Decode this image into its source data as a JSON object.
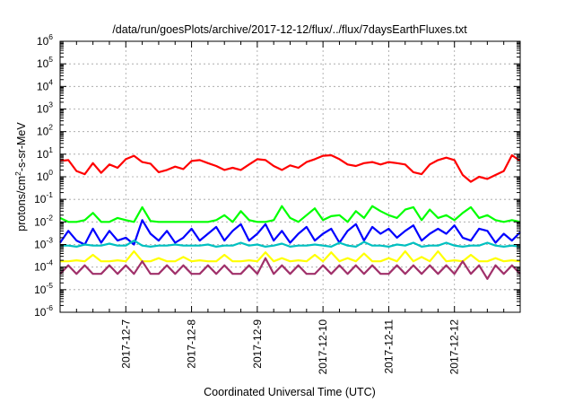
{
  "chart_data": {
    "type": "line",
    "title": "/data/run/goesPlots/archive/2017-12-12/flux/../flux/7daysEarthFluxes.txt",
    "xlabel": "Coordinated Universal Time (UTC)",
    "ylabel": {
      "pre": "protons/cm",
      "sup": "2",
      "post": "-s-sr-MeV"
    },
    "y_scale": "log",
    "ylim_exp": [
      -6,
      6
    ],
    "y_ticks": [
      {
        "base": "10",
        "exp": "-6"
      },
      {
        "base": "10",
        "exp": "-5"
      },
      {
        "base": "10",
        "exp": "-4"
      },
      {
        "base": "10",
        "exp": "-3"
      },
      {
        "base": "10",
        "exp": "-2"
      },
      {
        "base": "10",
        "exp": "-1"
      },
      {
        "base": "10",
        "exp": "0"
      },
      {
        "base": "10",
        "exp": "1"
      },
      {
        "base": "10",
        "exp": "2"
      },
      {
        "base": "10",
        "exp": "3"
      },
      {
        "base": "10",
        "exp": "4"
      },
      {
        "base": "10",
        "exp": "5"
      },
      {
        "base": "10",
        "exp": "6"
      }
    ],
    "x_range": [
      "2017-12-06 00:00",
      "2017-12-13 00:00"
    ],
    "x_ticks": [
      {
        "label": "2017-12-7",
        "x": "2017-12-07 00:00"
      },
      {
        "label": "2017-12-8",
        "x": "2017-12-08 00:00"
      },
      {
        "label": "2017-12-9",
        "x": "2017-12-09 00:00"
      },
      {
        "label": "2017-12-10",
        "x": "2017-12-10 00:00"
      },
      {
        "label": "2017-12-11",
        "x": "2017-12-11 00:00"
      },
      {
        "label": "2017-12-12",
        "x": "2017-12-12 00:00"
      }
    ],
    "grid": true,
    "series": [
      {
        "color": "#ff0000",
        "x": [
          "2017-12-06 00:00",
          "2017-12-06 03:00",
          "2017-12-06 06:00",
          "2017-12-06 09:00",
          "2017-12-06 12:00",
          "2017-12-06 15:00",
          "2017-12-06 18:00",
          "2017-12-06 21:00",
          "2017-12-07 00:00",
          "2017-12-07 03:00",
          "2017-12-07 06:00",
          "2017-12-07 09:00",
          "2017-12-07 12:00",
          "2017-12-07 15:00",
          "2017-12-07 18:00",
          "2017-12-07 21:00",
          "2017-12-08 00:00",
          "2017-12-08 03:00",
          "2017-12-08 06:00",
          "2017-12-08 09:00",
          "2017-12-08 12:00",
          "2017-12-08 15:00",
          "2017-12-08 18:00",
          "2017-12-08 21:00",
          "2017-12-09 00:00",
          "2017-12-09 03:00",
          "2017-12-09 06:00",
          "2017-12-09 09:00",
          "2017-12-09 12:00",
          "2017-12-09 15:00",
          "2017-12-09 18:00",
          "2017-12-09 21:00",
          "2017-12-10 00:00",
          "2017-12-10 03:00",
          "2017-12-10 06:00",
          "2017-12-10 09:00",
          "2017-12-10 12:00",
          "2017-12-10 15:00",
          "2017-12-10 18:00",
          "2017-12-10 21:00",
          "2017-12-11 00:00",
          "2017-12-11 03:00",
          "2017-12-11 06:00",
          "2017-12-11 09:00",
          "2017-12-11 12:00",
          "2017-12-11 15:00",
          "2017-12-11 18:00",
          "2017-12-11 21:00",
          "2017-12-12 00:00",
          "2017-12-12 03:00",
          "2017-12-12 06:00",
          "2017-12-12 09:00",
          "2017-12-12 12:00",
          "2017-12-12 15:00",
          "2017-12-12 18:00",
          "2017-12-12 21:00",
          "2017-12-13 00:00"
        ],
        "y": [
          5.0,
          5.5,
          1.8,
          1.3,
          4.0,
          1.5,
          3.5,
          2.5,
          6.0,
          8.5,
          4.5,
          3.8,
          1.6,
          2.0,
          2.8,
          2.2,
          5.0,
          5.5,
          4.0,
          3.0,
          2.0,
          2.5,
          2.0,
          3.5,
          6.0,
          5.5,
          3.0,
          2.0,
          3.2,
          2.5,
          4.5,
          6.0,
          8.5,
          9.0,
          6.0,
          3.5,
          3.0,
          4.0,
          4.5,
          3.5,
          4.5,
          4.0,
          3.5,
          1.6,
          1.3,
          3.5,
          5.5,
          7.0,
          5.5,
          1.2,
          0.6,
          1.0,
          0.8,
          1.2,
          1.8,
          9.0,
          5.0
        ]
      },
      {
        "color": "#00ff00",
        "x": [
          "2017-12-06 00:00",
          "2017-12-06 03:00",
          "2017-12-06 06:00",
          "2017-12-06 09:00",
          "2017-12-06 12:00",
          "2017-12-06 15:00",
          "2017-12-06 18:00",
          "2017-12-06 21:00",
          "2017-12-07 00:00",
          "2017-12-07 03:00",
          "2017-12-07 06:00",
          "2017-12-07 09:00",
          "2017-12-07 12:00",
          "2017-12-07 15:00",
          "2017-12-07 18:00",
          "2017-12-07 21:00",
          "2017-12-08 00:00",
          "2017-12-08 03:00",
          "2017-12-08 06:00",
          "2017-12-08 09:00",
          "2017-12-08 12:00",
          "2017-12-08 15:00",
          "2017-12-08 18:00",
          "2017-12-08 21:00",
          "2017-12-09 00:00",
          "2017-12-09 03:00",
          "2017-12-09 06:00",
          "2017-12-09 09:00",
          "2017-12-09 12:00",
          "2017-12-09 15:00",
          "2017-12-09 18:00",
          "2017-12-09 21:00",
          "2017-12-10 00:00",
          "2017-12-10 03:00",
          "2017-12-10 06:00",
          "2017-12-10 09:00",
          "2017-12-10 12:00",
          "2017-12-10 15:00",
          "2017-12-10 18:00",
          "2017-12-10 21:00",
          "2017-12-11 00:00",
          "2017-12-11 03:00",
          "2017-12-11 06:00",
          "2017-12-11 09:00",
          "2017-12-11 12:00",
          "2017-12-11 15:00",
          "2017-12-11 18:00",
          "2017-12-11 21:00",
          "2017-12-12 00:00",
          "2017-12-12 03:00",
          "2017-12-12 06:00",
          "2017-12-12 09:00",
          "2017-12-12 12:00",
          "2017-12-12 15:00",
          "2017-12-12 18:00",
          "2017-12-12 21:00",
          "2017-12-13 00:00"
        ],
        "y": [
          0.015,
          0.01,
          0.01,
          0.012,
          0.025,
          0.01,
          0.01,
          0.015,
          0.012,
          0.01,
          0.045,
          0.011,
          0.01,
          0.01,
          0.01,
          0.01,
          0.01,
          0.01,
          0.01,
          0.012,
          0.02,
          0.01,
          0.03,
          0.012,
          0.01,
          0.01,
          0.012,
          0.05,
          0.015,
          0.01,
          0.02,
          0.04,
          0.012,
          0.018,
          0.02,
          0.01,
          0.03,
          0.015,
          0.05,
          0.03,
          0.02,
          0.015,
          0.035,
          0.045,
          0.012,
          0.035,
          0.015,
          0.02,
          0.012,
          0.025,
          0.045,
          0.015,
          0.02,
          0.012,
          0.01,
          0.012,
          0.01
        ]
      },
      {
        "color": "#0000ff",
        "x": [
          "2017-12-06 00:00",
          "2017-12-06 03:00",
          "2017-12-06 06:00",
          "2017-12-06 09:00",
          "2017-12-06 12:00",
          "2017-12-06 15:00",
          "2017-12-06 18:00",
          "2017-12-06 21:00",
          "2017-12-07 00:00",
          "2017-12-07 03:00",
          "2017-12-07 06:00",
          "2017-12-07 09:00",
          "2017-12-07 12:00",
          "2017-12-07 15:00",
          "2017-12-07 18:00",
          "2017-12-07 21:00",
          "2017-12-08 00:00",
          "2017-12-08 03:00",
          "2017-12-08 06:00",
          "2017-12-08 09:00",
          "2017-12-08 12:00",
          "2017-12-08 15:00",
          "2017-12-08 18:00",
          "2017-12-08 21:00",
          "2017-12-09 00:00",
          "2017-12-09 03:00",
          "2017-12-09 06:00",
          "2017-12-09 09:00",
          "2017-12-09 12:00",
          "2017-12-09 15:00",
          "2017-12-09 18:00",
          "2017-12-09 21:00",
          "2017-12-10 00:00",
          "2017-12-10 03:00",
          "2017-12-10 06:00",
          "2017-12-10 09:00",
          "2017-12-10 12:00",
          "2017-12-10 15:00",
          "2017-12-10 18:00",
          "2017-12-10 21:00",
          "2017-12-11 00:00",
          "2017-12-11 03:00",
          "2017-12-11 06:00",
          "2017-12-11 09:00",
          "2017-12-11 12:00",
          "2017-12-11 15:00",
          "2017-12-11 18:00",
          "2017-12-11 21:00",
          "2017-12-12 00:00",
          "2017-12-12 03:00",
          "2017-12-12 06:00",
          "2017-12-12 09:00",
          "2017-12-12 12:00",
          "2017-12-12 15:00",
          "2017-12-12 18:00",
          "2017-12-12 21:00",
          "2017-12-13 00:00"
        ],
        "y": [
          0.0012,
          0.004,
          0.0015,
          0.001,
          0.005,
          0.0012,
          0.004,
          0.0015,
          0.002,
          0.001,
          0.012,
          0.003,
          0.0015,
          0.004,
          0.0012,
          0.002,
          0.005,
          0.0015,
          0.003,
          0.006,
          0.0015,
          0.004,
          0.008,
          0.0015,
          0.003,
          0.008,
          0.0015,
          0.004,
          0.0012,
          0.003,
          0.006,
          0.0015,
          0.003,
          0.005,
          0.0012,
          0.004,
          0.008,
          0.0015,
          0.006,
          0.003,
          0.005,
          0.002,
          0.004,
          0.007,
          0.0015,
          0.003,
          0.005,
          0.003,
          0.007,
          0.002,
          0.0015,
          0.005,
          0.004,
          0.0012,
          0.003,
          0.0015,
          0.0035
        ]
      },
      {
        "color": "#00c0c0",
        "x": [
          "2017-12-06 00:00",
          "2017-12-06 03:00",
          "2017-12-06 06:00",
          "2017-12-06 09:00",
          "2017-12-06 12:00",
          "2017-12-06 15:00",
          "2017-12-06 18:00",
          "2017-12-06 21:00",
          "2017-12-07 00:00",
          "2017-12-07 03:00",
          "2017-12-07 06:00",
          "2017-12-07 09:00",
          "2017-12-07 12:00",
          "2017-12-07 15:00",
          "2017-12-07 18:00",
          "2017-12-07 21:00",
          "2017-12-08 00:00",
          "2017-12-08 03:00",
          "2017-12-08 06:00",
          "2017-12-08 09:00",
          "2017-12-08 12:00",
          "2017-12-08 15:00",
          "2017-12-08 18:00",
          "2017-12-08 21:00",
          "2017-12-09 00:00",
          "2017-12-09 03:00",
          "2017-12-09 06:00",
          "2017-12-09 09:00",
          "2017-12-09 12:00",
          "2017-12-09 15:00",
          "2017-12-09 18:00",
          "2017-12-09 21:00",
          "2017-12-10 00:00",
          "2017-12-10 03:00",
          "2017-12-10 06:00",
          "2017-12-10 09:00",
          "2017-12-10 12:00",
          "2017-12-10 15:00",
          "2017-12-10 18:00",
          "2017-12-10 21:00",
          "2017-12-11 00:00",
          "2017-12-11 03:00",
          "2017-12-11 06:00",
          "2017-12-11 09:00",
          "2017-12-11 12:00",
          "2017-12-11 15:00",
          "2017-12-11 18:00",
          "2017-12-11 21:00",
          "2017-12-12 00:00",
          "2017-12-12 03:00",
          "2017-12-12 06:00",
          "2017-12-12 09:00",
          "2017-12-12 12:00",
          "2017-12-12 15:00",
          "2017-12-12 18:00",
          "2017-12-12 21:00",
          "2017-12-13 00:00"
        ],
        "y": [
          0.0009,
          0.0009,
          0.0008,
          0.001,
          0.0009,
          0.0009,
          0.0011,
          0.0009,
          0.0009,
          0.0015,
          0.0009,
          0.0008,
          0.0009,
          0.0009,
          0.001,
          0.0009,
          0.0009,
          0.0009,
          0.001,
          0.0008,
          0.0009,
          0.0009,
          0.0012,
          0.0009,
          0.001,
          0.0008,
          0.0009,
          0.0011,
          0.0008,
          0.0009,
          0.0009,
          0.001,
          0.0009,
          0.0008,
          0.0012,
          0.0009,
          0.0008,
          0.0013,
          0.0009,
          0.0009,
          0.0008,
          0.001,
          0.0009,
          0.0012,
          0.0008,
          0.0009,
          0.0009,
          0.0012,
          0.0009,
          0.0008,
          0.0009,
          0.0009,
          0.0012,
          0.0009,
          0.0008,
          0.0009,
          0.0008
        ]
      },
      {
        "color": "#ffff00",
        "x": [
          "2017-12-06 00:00",
          "2017-12-06 03:00",
          "2017-12-06 06:00",
          "2017-12-06 09:00",
          "2017-12-06 12:00",
          "2017-12-06 15:00",
          "2017-12-06 18:00",
          "2017-12-06 21:00",
          "2017-12-07 00:00",
          "2017-12-07 03:00",
          "2017-12-07 06:00",
          "2017-12-07 09:00",
          "2017-12-07 12:00",
          "2017-12-07 15:00",
          "2017-12-07 18:00",
          "2017-12-07 21:00",
          "2017-12-08 00:00",
          "2017-12-08 03:00",
          "2017-12-08 06:00",
          "2017-12-08 09:00",
          "2017-12-08 12:00",
          "2017-12-08 15:00",
          "2017-12-08 18:00",
          "2017-12-08 21:00",
          "2017-12-09 00:00",
          "2017-12-09 03:00",
          "2017-12-09 06:00",
          "2017-12-09 09:00",
          "2017-12-09 12:00",
          "2017-12-09 15:00",
          "2017-12-09 18:00",
          "2017-12-09 21:00",
          "2017-12-10 00:00",
          "2017-12-10 03:00",
          "2017-12-10 06:00",
          "2017-12-10 09:00",
          "2017-12-10 12:00",
          "2017-12-10 15:00",
          "2017-12-10 18:00",
          "2017-12-10 21:00",
          "2017-12-11 00:00",
          "2017-12-11 03:00",
          "2017-12-11 06:00",
          "2017-12-11 09:00",
          "2017-12-11 12:00",
          "2017-12-11 15:00",
          "2017-12-11 18:00",
          "2017-12-11 21:00",
          "2017-12-12 00:00",
          "2017-12-12 03:00",
          "2017-12-12 06:00",
          "2017-12-12 09:00",
          "2017-12-12 12:00",
          "2017-12-12 15:00",
          "2017-12-12 18:00",
          "2017-12-12 21:00",
          "2017-12-13 00:00"
        ],
        "y": [
          0.00018,
          0.00018,
          0.0002,
          0.00018,
          0.00035,
          0.00018,
          0.00018,
          0.0002,
          0.00018,
          0.0005,
          0.00018,
          0.00018,
          0.00025,
          0.00018,
          0.00018,
          0.00028,
          0.00018,
          0.0002,
          0.00018,
          0.00018,
          0.00035,
          0.00018,
          0.00018,
          0.0002,
          0.00018,
          0.00045,
          0.00018,
          0.00025,
          0.00018,
          0.0002,
          0.00018,
          0.00035,
          0.00018,
          0.00045,
          0.00018,
          0.00025,
          0.00018,
          0.0004,
          0.00018,
          0.00018,
          0.00025,
          0.00018,
          0.0005,
          0.00018,
          0.00028,
          0.00018,
          0.0005,
          0.00018,
          0.0002,
          0.00018,
          0.00035,
          0.00018,
          0.00018,
          0.00025,
          0.00018,
          0.0002,
          0.00018
        ]
      },
      {
        "color": "#a0306a",
        "x": [
          "2017-12-06 00:00",
          "2017-12-06 03:00",
          "2017-12-06 06:00",
          "2017-12-06 09:00",
          "2017-12-06 12:00",
          "2017-12-06 15:00",
          "2017-12-06 18:00",
          "2017-12-06 21:00",
          "2017-12-07 00:00",
          "2017-12-07 03:00",
          "2017-12-07 06:00",
          "2017-12-07 09:00",
          "2017-12-07 12:00",
          "2017-12-07 15:00",
          "2017-12-07 18:00",
          "2017-12-07 21:00",
          "2017-12-08 00:00",
          "2017-12-08 03:00",
          "2017-12-08 06:00",
          "2017-12-08 09:00",
          "2017-12-08 12:00",
          "2017-12-08 15:00",
          "2017-12-08 18:00",
          "2017-12-08 21:00",
          "2017-12-09 00:00",
          "2017-12-09 03:00",
          "2017-12-09 06:00",
          "2017-12-09 09:00",
          "2017-12-09 12:00",
          "2017-12-09 15:00",
          "2017-12-09 18:00",
          "2017-12-09 21:00",
          "2017-12-10 00:00",
          "2017-12-10 03:00",
          "2017-12-10 06:00",
          "2017-12-10 09:00",
          "2017-12-10 12:00",
          "2017-12-10 15:00",
          "2017-12-10 18:00",
          "2017-12-10 21:00",
          "2017-12-11 00:00",
          "2017-12-11 03:00",
          "2017-12-11 06:00",
          "2017-12-11 09:00",
          "2017-12-11 12:00",
          "2017-12-11 15:00",
          "2017-12-11 18:00",
          "2017-12-11 21:00",
          "2017-12-12 00:00",
          "2017-12-12 03:00",
          "2017-12-12 06:00",
          "2017-12-12 09:00",
          "2017-12-12 12:00",
          "2017-12-12 15:00",
          "2017-12-12 18:00",
          "2017-12-12 21:00",
          "2017-12-13 00:00"
        ],
        "y": [
          5e-05,
          0.00012,
          5e-05,
          0.00012,
          5e-05,
          5e-05,
          0.00012,
          5e-05,
          0.00012,
          5e-05,
          0.00018,
          5e-05,
          5e-05,
          0.00012,
          5e-05,
          0.00012,
          5e-05,
          5e-05,
          0.00012,
          5e-05,
          0.00012,
          5e-05,
          5e-05,
          0.00012,
          5e-05,
          0.00025,
          5e-05,
          0.00012,
          5e-05,
          0.00012,
          5e-05,
          5e-05,
          0.00012,
          5e-05,
          0.00012,
          5e-05,
          0.00012,
          5e-05,
          0.00012,
          5e-05,
          5e-05,
          0.00012,
          5e-05,
          0.00012,
          5e-05,
          0.00012,
          5e-05,
          0.00012,
          5e-05,
          0.00018,
          5e-05,
          0.00012,
          3e-05,
          0.00012,
          5e-05,
          0.00012,
          5e-05
        ]
      }
    ]
  }
}
